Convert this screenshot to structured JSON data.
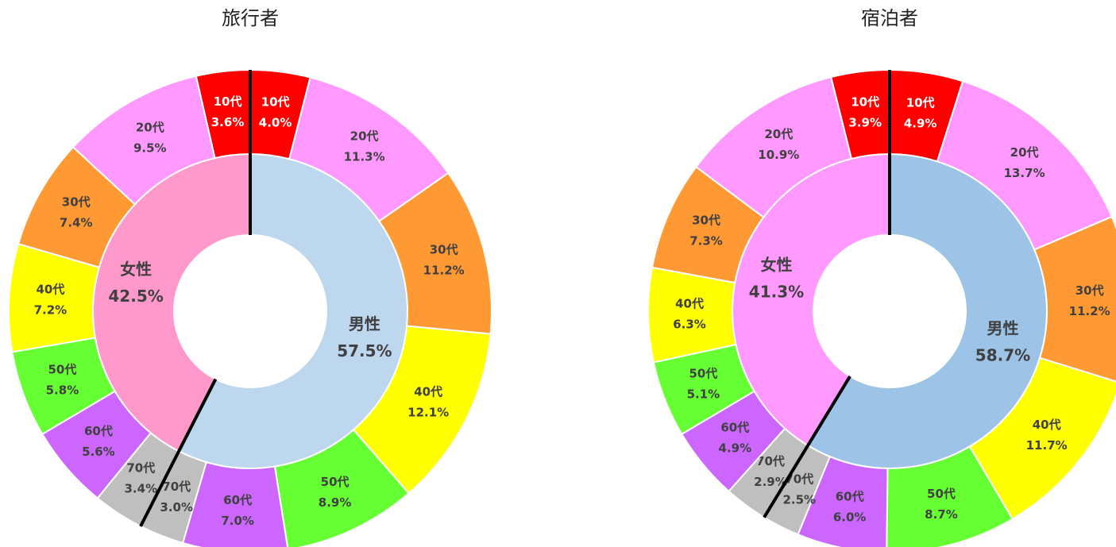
{
  "chart_data": [
    {
      "type": "donut",
      "title": "旅行者",
      "inner": {
        "categories": [
          "男性",
          "女性"
        ],
        "values": [
          57.5,
          42.5
        ],
        "value_labels": [
          "57.5%",
          "42.5%"
        ],
        "colors": [
          "#bdd7ee",
          "#ff99cc"
        ]
      },
      "outer": {
        "categories": [
          "10代",
          "20代",
          "30代",
          "40代",
          "50代",
          "60代",
          "70代",
          "70代",
          "60代",
          "50代",
          "40代",
          "30代",
          "20代",
          "10代"
        ],
        "values": [
          4.0,
          11.3,
          11.2,
          12.1,
          8.9,
          7.0,
          3.0,
          3.4,
          5.6,
          5.8,
          7.2,
          7.4,
          9.5,
          3.6
        ],
        "value_labels": [
          "4.0%",
          "11.3%",
          "11.2%",
          "12.1%",
          "8.9%",
          "7.0%",
          "3.0%",
          "3.4%",
          "5.6%",
          "5.8%",
          "7.2%",
          "7.4%",
          "9.5%",
          "3.6%"
        ],
        "colors": [
          "#ff0000",
          "#ff99ff",
          "#ff9933",
          "#ffff00",
          "#66ff33",
          "#cc66ff",
          "#bfbfbf",
          "#bfbfbf",
          "#cc66ff",
          "#66ff33",
          "#ffff00",
          "#ff9933",
          "#ff99ff",
          "#ff0000"
        ]
      }
    },
    {
      "type": "donut",
      "title": "宿泊者",
      "inner": {
        "categories": [
          "男性",
          "女性"
        ],
        "values": [
          58.7,
          41.3
        ],
        "value_labels": [
          "58.7%",
          "41.3%"
        ],
        "colors": [
          "#9dc3e6",
          "#ff99ff"
        ]
      },
      "outer": {
        "categories": [
          "10代",
          "20代",
          "30代",
          "40代",
          "50代",
          "60代",
          "70代",
          "70代",
          "60代",
          "50代",
          "40代",
          "30代",
          "20代",
          "10代"
        ],
        "values": [
          4.9,
          13.7,
          11.2,
          11.7,
          8.7,
          6.0,
          2.5,
          2.9,
          4.9,
          5.1,
          6.3,
          7.3,
          10.9,
          3.9
        ],
        "value_labels": [
          "4.9%",
          "13.7%",
          "11.2%",
          "11.7%",
          "8.7%",
          "6.0%",
          "2.5%",
          "2.9%",
          "4.9%",
          "5.1%",
          "6.3%",
          "7.3%",
          "10.9%",
          "3.9%"
        ],
        "colors": [
          "#ff0000",
          "#ff99ff",
          "#ff9933",
          "#ffff00",
          "#66ff33",
          "#cc66ff",
          "#bfbfbf",
          "#bfbfbf",
          "#cc66ff",
          "#66ff33",
          "#ffff00",
          "#ff9933",
          "#ff99ff",
          "#ff0000"
        ]
      }
    }
  ]
}
